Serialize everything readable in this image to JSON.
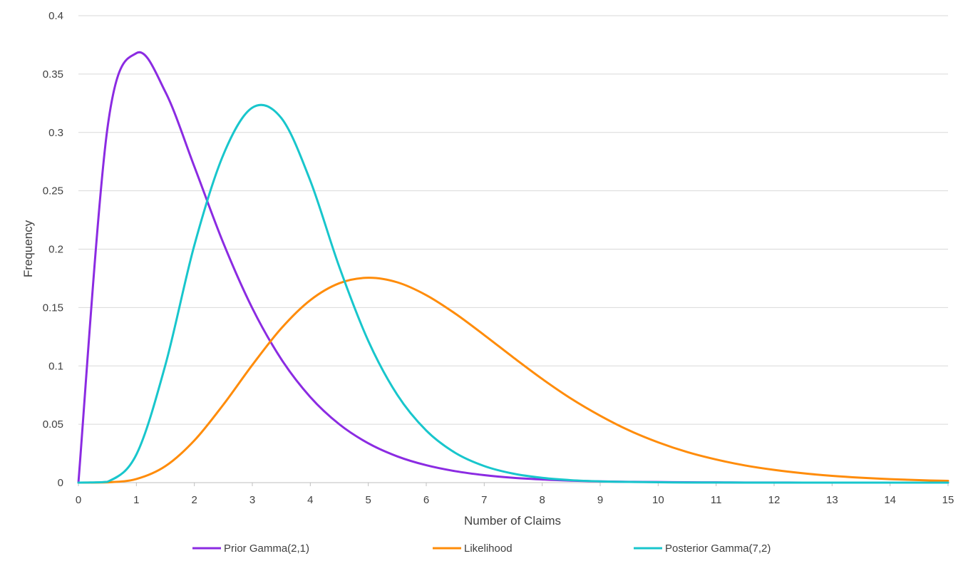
{
  "chart_data": {
    "type": "line",
    "title": "",
    "xlabel": "Number of Claims",
    "ylabel": "Frequency",
    "xlim": [
      0,
      15
    ],
    "ylim": [
      0,
      0.4
    ],
    "x_ticks": [
      "0",
      "1",
      "2",
      "3",
      "4",
      "5",
      "6",
      "7",
      "8",
      "9",
      "10",
      "11",
      "12",
      "13",
      "14",
      "15"
    ],
    "y_ticks": [
      "0",
      "0.05",
      "0.1",
      "0.15",
      "0.2",
      "0.25",
      "0.3",
      "0.35",
      "0.4"
    ],
    "grid": true,
    "legend_position": "bottom",
    "x": [
      0,
      0.5,
      1,
      1.5,
      2,
      2.5,
      3,
      3.5,
      4,
      4.5,
      5,
      5.5,
      6,
      6.5,
      7,
      7.5,
      8,
      8.5,
      9,
      9.5,
      10,
      10.5,
      11,
      11.5,
      12,
      12.5,
      13,
      13.5,
      14,
      14.5,
      15
    ],
    "series": [
      {
        "name": "Prior Gamma(2,1)",
        "color": "#8b2be2",
        "values": [
          0,
          0.3033,
          0.3679,
          0.3347,
          0.2707,
          0.2052,
          0.1494,
          0.1057,
          0.0733,
          0.05,
          0.0337,
          0.0225,
          0.0149,
          0.0098,
          0.0064,
          0.0041,
          0.0027,
          0.0017,
          0.0011,
          0.0007,
          0.0005,
          0.0003,
          0.0002,
          0.0001,
          0.0001,
          0,
          0,
          0,
          0,
          0,
          0
        ]
      },
      {
        "name": "Likelihood",
        "color": "#ff8c0a",
        "values": [
          0,
          0.0002,
          0.0031,
          0.0141,
          0.0361,
          0.0668,
          0.1008,
          0.1322,
          0.1563,
          0.1708,
          0.1755,
          0.1716,
          0.1606,
          0.1448,
          0.1264,
          0.1073,
          0.0888,
          0.0719,
          0.0573,
          0.0447,
          0.0345,
          0.0262,
          0.0198,
          0.0147,
          0.0109,
          0.008,
          0.0058,
          0.0042,
          0.003,
          0.0021,
          0.0015
        ]
      },
      {
        "name": "Posterior Gamma(7,2)",
        "color": "#18c6cc",
        "values": [
          0,
          0.0007,
          0.0241,
          0.1008,
          0.2034,
          0.2809,
          0.3212,
          0.3123,
          0.2586,
          0.1848,
          0.1214,
          0.0752,
          0.0446,
          0.0255,
          0.0142,
          0.0077,
          0.0041,
          0.0021,
          0.0011,
          0.0006,
          0.0003,
          0.0001,
          0.0001,
          0,
          0,
          0,
          0,
          0,
          0,
          0,
          0
        ]
      }
    ]
  }
}
